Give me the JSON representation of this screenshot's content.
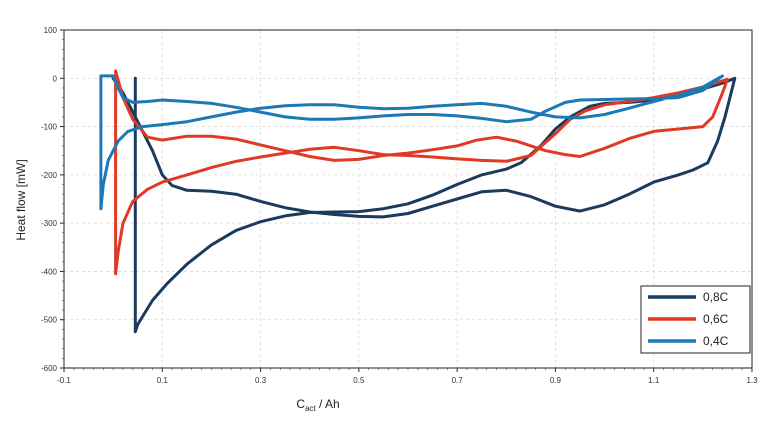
{
  "chart_data": {
    "type": "line",
    "title": "",
    "xlabel_main": "C",
    "xlabel_sub": "act",
    "xlabel_unit": " / Ah",
    "ylabel": "Heat flow [mW]",
    "xlim": [
      -0.1,
      1.3
    ],
    "ylim": [
      -600,
      100
    ],
    "x_ticks": [
      -0.1,
      0.1,
      0.3,
      0.5,
      0.7,
      0.9,
      1.1,
      1.3
    ],
    "x_tick_labels": [
      "-0.1",
      "0.1",
      "0.3",
      "0.5",
      "0.7",
      "0.9",
      "1.1",
      "1.3"
    ],
    "y_ticks": [
      100,
      0,
      -100,
      -200,
      -300,
      -400,
      -500,
      -600
    ],
    "y_tick_labels": [
      "100",
      "0",
      "-100",
      "-200",
      "-300",
      "-400",
      "-500",
      "-600"
    ],
    "grid": true,
    "legend_position": "bottom-right",
    "series": [
      {
        "name": "0,8C",
        "color": "#1b3a5c",
        "points": [
          [
            0.045,
            0
          ],
          [
            0.045,
            -525
          ],
          [
            0.05,
            -510
          ],
          [
            0.08,
            -460
          ],
          [
            0.11,
            -425
          ],
          [
            0.15,
            -385
          ],
          [
            0.2,
            -345
          ],
          [
            0.25,
            -315
          ],
          [
            0.3,
            -297
          ],
          [
            0.35,
            -285
          ],
          [
            0.4,
            -278
          ],
          [
            0.45,
            -277
          ],
          [
            0.5,
            -276
          ],
          [
            0.55,
            -270
          ],
          [
            0.6,
            -260
          ],
          [
            0.65,
            -242
          ],
          [
            0.7,
            -220
          ],
          [
            0.75,
            -200
          ],
          [
            0.8,
            -188
          ],
          [
            0.83,
            -175
          ],
          [
            0.87,
            -140
          ],
          [
            0.9,
            -105
          ],
          [
            0.93,
            -80
          ],
          [
            0.97,
            -58
          ],
          [
            1.0,
            -52
          ],
          [
            1.05,
            -50
          ],
          [
            1.1,
            -45
          ],
          [
            1.15,
            -35
          ],
          [
            1.2,
            -22
          ],
          [
            1.24,
            -10
          ],
          [
            1.265,
            0
          ],
          [
            1.255,
            -40
          ],
          [
            1.245,
            -80
          ],
          [
            1.23,
            -130
          ],
          [
            1.21,
            -175
          ],
          [
            1.18,
            -190
          ],
          [
            1.15,
            -200
          ],
          [
            1.1,
            -215
          ],
          [
            1.05,
            -240
          ],
          [
            1.0,
            -262
          ],
          [
            0.95,
            -275
          ],
          [
            0.9,
            -265
          ],
          [
            0.85,
            -245
          ],
          [
            0.8,
            -232
          ],
          [
            0.75,
            -235
          ],
          [
            0.7,
            -250
          ],
          [
            0.65,
            -265
          ],
          [
            0.6,
            -280
          ],
          [
            0.55,
            -287
          ],
          [
            0.5,
            -286
          ],
          [
            0.45,
            -282
          ],
          [
            0.4,
            -277
          ],
          [
            0.35,
            -268
          ],
          [
            0.3,
            -255
          ],
          [
            0.25,
            -240
          ],
          [
            0.2,
            -234
          ],
          [
            0.15,
            -232
          ],
          [
            0.12,
            -222
          ],
          [
            0.1,
            -200
          ],
          [
            0.08,
            -150
          ],
          [
            0.05,
            -90
          ],
          [
            0.02,
            -30
          ],
          [
            0.0,
            0
          ]
        ]
      },
      {
        "name": "0,6C",
        "color": "#e03a24",
        "points": [
          [
            0.005,
            15
          ],
          [
            0.005,
            -405
          ],
          [
            0.01,
            -360
          ],
          [
            0.02,
            -300
          ],
          [
            0.04,
            -255
          ],
          [
            0.07,
            -230
          ],
          [
            0.1,
            -215
          ],
          [
            0.15,
            -200
          ],
          [
            0.2,
            -185
          ],
          [
            0.25,
            -172
          ],
          [
            0.3,
            -163
          ],
          [
            0.35,
            -155
          ],
          [
            0.4,
            -147
          ],
          [
            0.45,
            -143
          ],
          [
            0.5,
            -150
          ],
          [
            0.55,
            -158
          ],
          [
            0.6,
            -160
          ],
          [
            0.65,
            -163
          ],
          [
            0.7,
            -167
          ],
          [
            0.75,
            -170
          ],
          [
            0.8,
            -172
          ],
          [
            0.85,
            -160
          ],
          [
            0.9,
            -115
          ],
          [
            0.93,
            -85
          ],
          [
            0.96,
            -68
          ],
          [
            1.0,
            -55
          ],
          [
            1.05,
            -48
          ],
          [
            1.1,
            -40
          ],
          [
            1.15,
            -30
          ],
          [
            1.2,
            -18
          ],
          [
            1.25,
            -2
          ],
          [
            1.24,
            -30
          ],
          [
            1.22,
            -80
          ],
          [
            1.2,
            -100
          ],
          [
            1.15,
            -105
          ],
          [
            1.1,
            -110
          ],
          [
            1.05,
            -125
          ],
          [
            1.0,
            -145
          ],
          [
            0.95,
            -162
          ],
          [
            0.92,
            -158
          ],
          [
            0.88,
            -150
          ],
          [
            0.82,
            -130
          ],
          [
            0.78,
            -122
          ],
          [
            0.74,
            -128
          ],
          [
            0.7,
            -140
          ],
          [
            0.65,
            -148
          ],
          [
            0.6,
            -155
          ],
          [
            0.55,
            -160
          ],
          [
            0.5,
            -168
          ],
          [
            0.45,
            -170
          ],
          [
            0.4,
            -162
          ],
          [
            0.35,
            -150
          ],
          [
            0.3,
            -138
          ],
          [
            0.25,
            -126
          ],
          [
            0.2,
            -120
          ],
          [
            0.15,
            -120
          ],
          [
            0.1,
            -128
          ],
          [
            0.07,
            -122
          ],
          [
            0.04,
            -85
          ],
          [
            0.02,
            -40
          ],
          [
            0.005,
            15
          ]
        ]
      },
      {
        "name": "0,4C",
        "color": "#1c79b6",
        "points": [
          [
            -0.025,
            5
          ],
          [
            -0.025,
            -270
          ],
          [
            -0.02,
            -220
          ],
          [
            -0.01,
            -170
          ],
          [
            0.01,
            -130
          ],
          [
            0.03,
            -110
          ],
          [
            0.06,
            -100
          ],
          [
            0.1,
            -96
          ],
          [
            0.15,
            -90
          ],
          [
            0.2,
            -80
          ],
          [
            0.25,
            -70
          ],
          [
            0.3,
            -62
          ],
          [
            0.35,
            -57
          ],
          [
            0.4,
            -55
          ],
          [
            0.45,
            -55
          ],
          [
            0.5,
            -60
          ],
          [
            0.55,
            -63
          ],
          [
            0.6,
            -62
          ],
          [
            0.65,
            -58
          ],
          [
            0.7,
            -55
          ],
          [
            0.75,
            -52
          ],
          [
            0.8,
            -58
          ],
          [
            0.85,
            -70
          ],
          [
            0.9,
            -80
          ],
          [
            0.95,
            -82
          ],
          [
            1.0,
            -75
          ],
          [
            1.05,
            -62
          ],
          [
            1.1,
            -48
          ],
          [
            1.15,
            -35
          ],
          [
            1.2,
            -18
          ],
          [
            1.24,
            5
          ],
          [
            1.2,
            -25
          ],
          [
            1.15,
            -40
          ],
          [
            1.1,
            -42
          ],
          [
            1.05,
            -43
          ],
          [
            1.0,
            -44
          ],
          [
            0.95,
            -45
          ],
          [
            0.92,
            -50
          ],
          [
            0.88,
            -68
          ],
          [
            0.85,
            -85
          ],
          [
            0.8,
            -90
          ],
          [
            0.75,
            -83
          ],
          [
            0.7,
            -78
          ],
          [
            0.65,
            -75
          ],
          [
            0.6,
            -75
          ],
          [
            0.55,
            -78
          ],
          [
            0.5,
            -82
          ],
          [
            0.45,
            -85
          ],
          [
            0.4,
            -85
          ],
          [
            0.35,
            -80
          ],
          [
            0.3,
            -70
          ],
          [
            0.25,
            -60
          ],
          [
            0.2,
            -52
          ],
          [
            0.15,
            -48
          ],
          [
            0.1,
            -45
          ],
          [
            0.07,
            -48
          ],
          [
            0.04,
            -50
          ],
          [
            0.02,
            -40
          ],
          [
            0.01,
            -20
          ],
          [
            0.0,
            5
          ],
          [
            -0.025,
            5
          ]
        ]
      }
    ]
  }
}
